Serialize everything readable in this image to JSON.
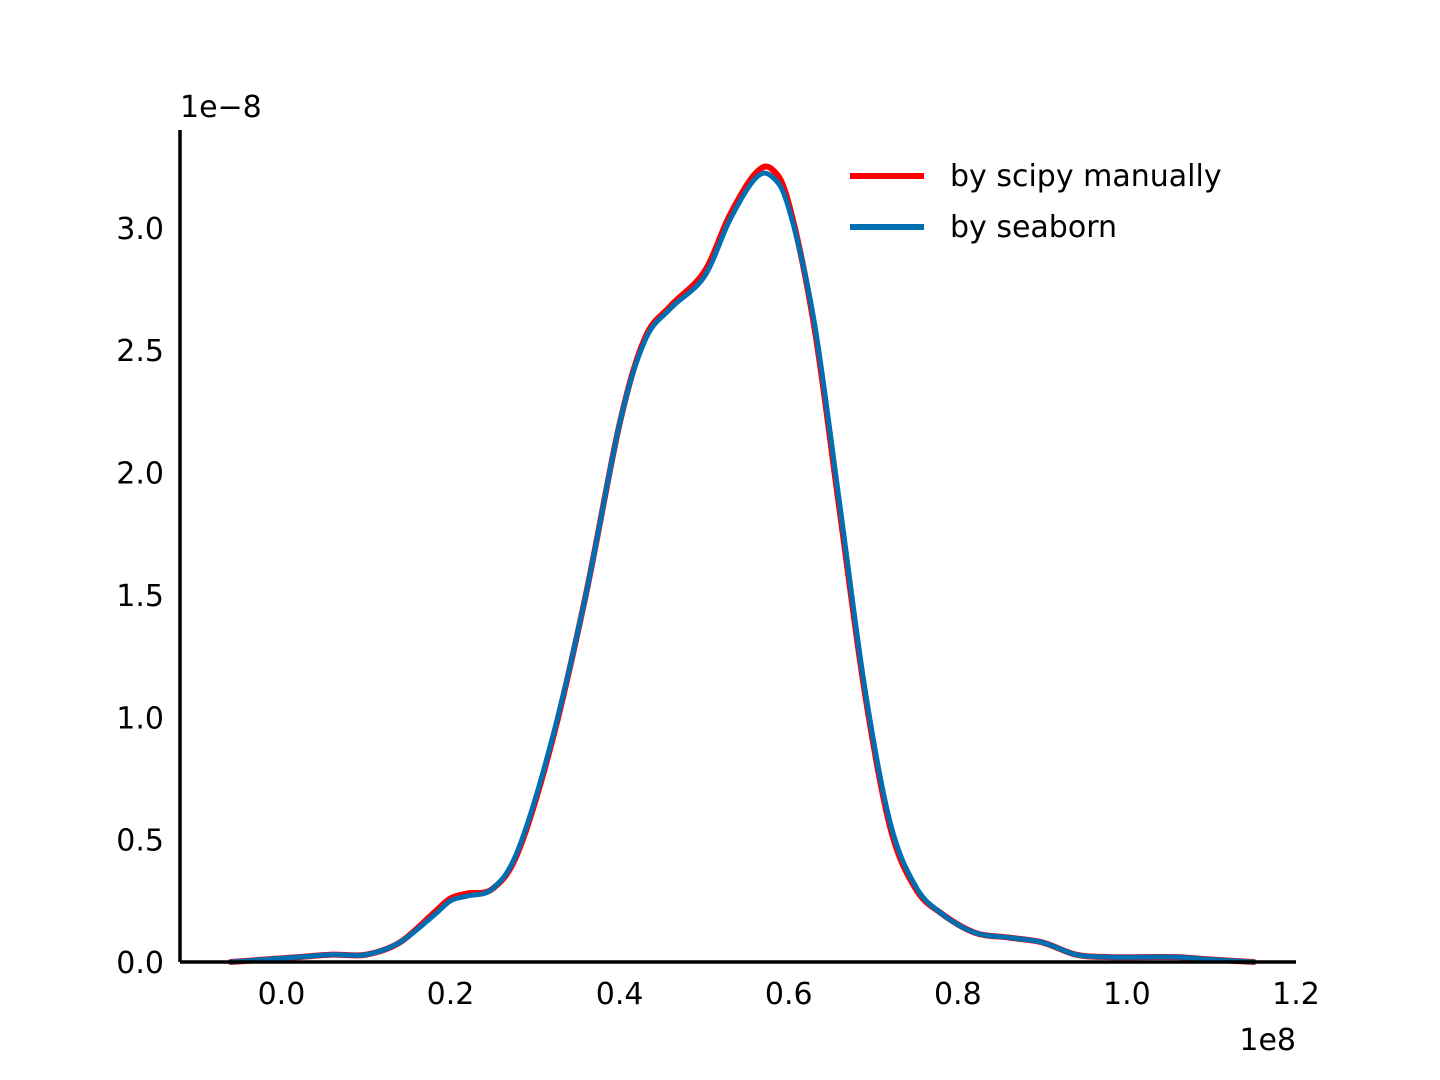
{
  "chart_data": {
    "type": "line",
    "title": "",
    "xlabel": "",
    "ylabel": "",
    "x_offset_label": "1e8",
    "y_offset_label": "1e−8",
    "xlim": [
      -0.12,
      1.2
    ],
    "ylim": [
      0.0,
      3.4
    ],
    "x_ticks": [
      0.0,
      0.2,
      0.4,
      0.6,
      0.8,
      1.0,
      1.2
    ],
    "x_tick_labels": [
      "0.0",
      "0.2",
      "0.4",
      "0.6",
      "0.8",
      "1.0",
      "1.2"
    ],
    "y_ticks": [
      0.0,
      0.5,
      1.0,
      1.5,
      2.0,
      2.5,
      3.0
    ],
    "y_tick_labels": [
      "0.0",
      "0.5",
      "1.0",
      "1.5",
      "2.0",
      "2.5",
      "3.0"
    ],
    "grid": false,
    "legend_position": "top-right",
    "series": [
      {
        "name": "by scipy manually",
        "color": "#ff0000",
        "x": [
          -0.06,
          -0.02,
          0.02,
          0.06,
          0.1,
          0.14,
          0.18,
          0.2,
          0.22,
          0.25,
          0.28,
          0.32,
          0.36,
          0.4,
          0.43,
          0.46,
          0.5,
          0.53,
          0.56,
          0.58,
          0.6,
          0.63,
          0.66,
          0.69,
          0.72,
          0.75,
          0.78,
          0.82,
          0.86,
          0.9,
          0.94,
          0.98,
          1.02,
          1.06,
          1.1,
          1.15
        ],
        "y": [
          0.0,
          0.01,
          0.02,
          0.03,
          0.03,
          0.08,
          0.2,
          0.26,
          0.28,
          0.3,
          0.45,
          0.9,
          1.5,
          2.2,
          2.55,
          2.68,
          2.82,
          3.05,
          3.22,
          3.24,
          3.1,
          2.6,
          1.85,
          1.1,
          0.55,
          0.3,
          0.2,
          0.12,
          0.1,
          0.08,
          0.03,
          0.02,
          0.02,
          0.02,
          0.01,
          0.0
        ]
      },
      {
        "name": "by seaborn",
        "color": "#006fb2",
        "x": [
          -0.06,
          -0.02,
          0.02,
          0.06,
          0.1,
          0.14,
          0.18,
          0.2,
          0.22,
          0.25,
          0.28,
          0.32,
          0.36,
          0.4,
          0.43,
          0.46,
          0.5,
          0.53,
          0.56,
          0.58,
          0.6,
          0.63,
          0.66,
          0.69,
          0.72,
          0.75,
          0.78,
          0.82,
          0.86,
          0.9,
          0.94,
          0.98,
          1.02,
          1.06,
          1.1,
          1.15
        ],
        "y": [
          0.0,
          0.01,
          0.02,
          0.03,
          0.03,
          0.08,
          0.19,
          0.25,
          0.27,
          0.3,
          0.46,
          0.91,
          1.5,
          2.2,
          2.54,
          2.67,
          2.8,
          3.03,
          3.2,
          3.21,
          3.08,
          2.62,
          1.88,
          1.12,
          0.57,
          0.31,
          0.2,
          0.12,
          0.1,
          0.08,
          0.03,
          0.02,
          0.02,
          0.02,
          0.01,
          0.0
        ]
      }
    ]
  }
}
